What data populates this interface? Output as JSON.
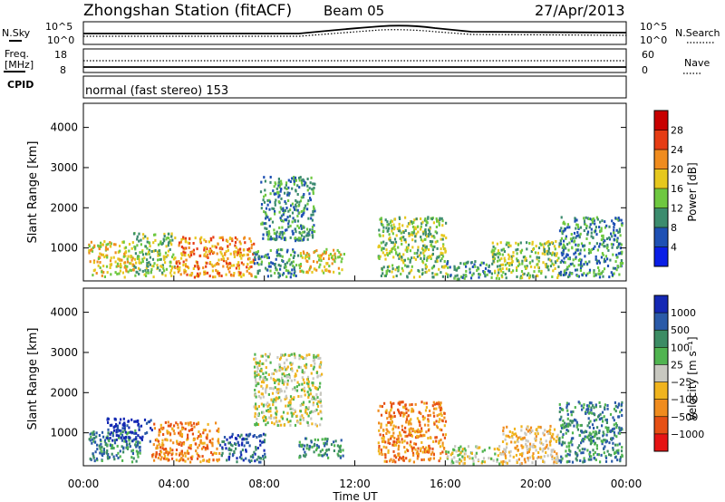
{
  "header": {
    "title": "Zhongshan Station (fitACF)",
    "beam": "Beam 05",
    "date": "27/Apr/2013"
  },
  "status_panels": {
    "nsky_label": "N.Sky",
    "nsky_ticks": [
      "10^5",
      "10^0"
    ],
    "nsearch_label": "N.Search",
    "freq_label_1": "Freq.",
    "freq_label_2": "[MHz]",
    "freq_ticks": [
      "18",
      "8"
    ],
    "nave_ticks": [
      "60",
      "0"
    ],
    "nave_label": "Nave",
    "cpid_label": "CPID",
    "cpid_text": "normal (fast stereo) 153"
  },
  "chart_data": [
    {
      "type": "heatmap",
      "name": "power",
      "ylabel": "Slant Range [km]",
      "yticks": [
        "1000",
        "2000",
        "3000",
        "4000"
      ],
      "ylim": [
        180,
        4600
      ],
      "xlim": [
        0,
        24
      ],
      "colorbar_label": "Power [dB]",
      "colorbar_ticks": [
        "4",
        "8",
        "12",
        "16",
        "20",
        "24",
        "28"
      ],
      "colors": [
        "#0a1ee6",
        "#1e50b4",
        "#3c8c6e",
        "#6ec840",
        "#e6c81e",
        "#f08c1e",
        "#e63c14",
        "#c80000"
      ],
      "regions": [
        {
          "t0": 0.2,
          "t1": 2.2,
          "r0": 300,
          "r1": 1200,
          "level": 4
        },
        {
          "t0": 2.2,
          "t1": 4.0,
          "r0": 300,
          "r1": 1400,
          "level": 3
        },
        {
          "t0": 4.0,
          "t1": 7.5,
          "r0": 300,
          "r1": 1300,
          "level": 5
        },
        {
          "t0": 7.5,
          "t1": 9.5,
          "r0": 300,
          "r1": 1000,
          "level": 2
        },
        {
          "t0": 7.8,
          "t1": 10.2,
          "r0": 1200,
          "r1": 2800,
          "level": 2
        },
        {
          "t0": 9.5,
          "t1": 11.5,
          "r0": 400,
          "r1": 1000,
          "level": 4
        },
        {
          "t0": 13.0,
          "t1": 16.0,
          "r0": 300,
          "r1": 1800,
          "level": 3
        },
        {
          "t0": 16.0,
          "t1": 18.0,
          "r0": 250,
          "r1": 700,
          "level": 2
        },
        {
          "t0": 18.0,
          "t1": 21.0,
          "r0": 250,
          "r1": 1200,
          "level": 3
        },
        {
          "t0": 21.0,
          "t1": 23.8,
          "r0": 300,
          "r1": 1800,
          "level": 2
        }
      ]
    },
    {
      "type": "heatmap",
      "name": "velocity",
      "ylabel": "Slant Range [km]",
      "yticks": [
        "1000",
        "2000",
        "3000",
        "4000"
      ],
      "ylim": [
        180,
        4600
      ],
      "xlim": [
        0,
        24
      ],
      "xticks": [
        "00:00",
        "04:00",
        "08:00",
        "12:00",
        "16:00",
        "20:00",
        "00:00"
      ],
      "xlabel": "Time UT",
      "colorbar_label": "Velocity [m s⁻¹]",
      "colorbar_ticks": [
        "1000",
        "500",
        "100",
        "25",
        "−25",
        "−100",
        "−500",
        "−1000"
      ],
      "colors": [
        "#1428b4",
        "#2a5aa8",
        "#3c8c64",
        "#50b450",
        "#c8c8c0",
        "#f0b41e",
        "#f08c1e",
        "#e65014",
        "#e61414"
      ],
      "regions": [
        {
          "t0": 0.2,
          "t1": 2.5,
          "r0": 300,
          "r1": 1100,
          "level": 2
        },
        {
          "t0": 1.0,
          "t1": 3.0,
          "r0": 800,
          "r1": 1400,
          "level": 0
        },
        {
          "t0": 3.0,
          "t1": 6.0,
          "r0": 300,
          "r1": 1300,
          "level": 6
        },
        {
          "t0": 6.0,
          "t1": 8.0,
          "r0": 300,
          "r1": 1000,
          "level": 1
        },
        {
          "t0": 7.5,
          "t1": 10.5,
          "r0": 1200,
          "r1": 3000,
          "level": 4
        },
        {
          "t0": 9.5,
          "t1": 11.5,
          "r0": 400,
          "r1": 900,
          "level": 2
        },
        {
          "t0": 13.0,
          "t1": 16.0,
          "r0": 300,
          "r1": 1800,
          "level": 6
        },
        {
          "t0": 16.0,
          "t1": 18.5,
          "r0": 250,
          "r1": 700,
          "level": 4
        },
        {
          "t0": 18.5,
          "t1": 21.0,
          "r0": 250,
          "r1": 1200,
          "level": 5
        },
        {
          "t0": 21.0,
          "t1": 23.8,
          "r0": 300,
          "r1": 1800,
          "level": 2
        }
      ]
    }
  ]
}
